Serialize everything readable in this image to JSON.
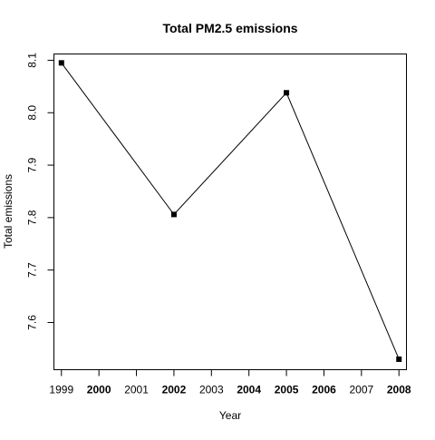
{
  "chart_data": {
    "type": "line",
    "title": "Total PM2.5 emissions",
    "xlabel": "Year",
    "ylabel": "Total emissions",
    "x": [
      1999,
      2002,
      2005,
      2008
    ],
    "series": [
      {
        "values": [
          8.095,
          7.806,
          8.038,
          7.53
        ]
      }
    ],
    "xlim": [
      1998.8,
      2008.2
    ],
    "ylim": [
      7.51,
      8.112
    ],
    "x_ticks": [
      "1999",
      "2000",
      "2001",
      "2002",
      "2003",
      "2004",
      "2005",
      "2006",
      "2007",
      "2008"
    ],
    "x_ticks_bold": [
      "2000",
      "2002",
      "2004",
      "2005",
      "2006",
      "2008"
    ],
    "y_ticks": [
      "7.6",
      "7.7",
      "7.8",
      "7.9",
      "8.0",
      "8.1"
    ],
    "grid": false,
    "marker": "square",
    "line_color": "#000000"
  }
}
